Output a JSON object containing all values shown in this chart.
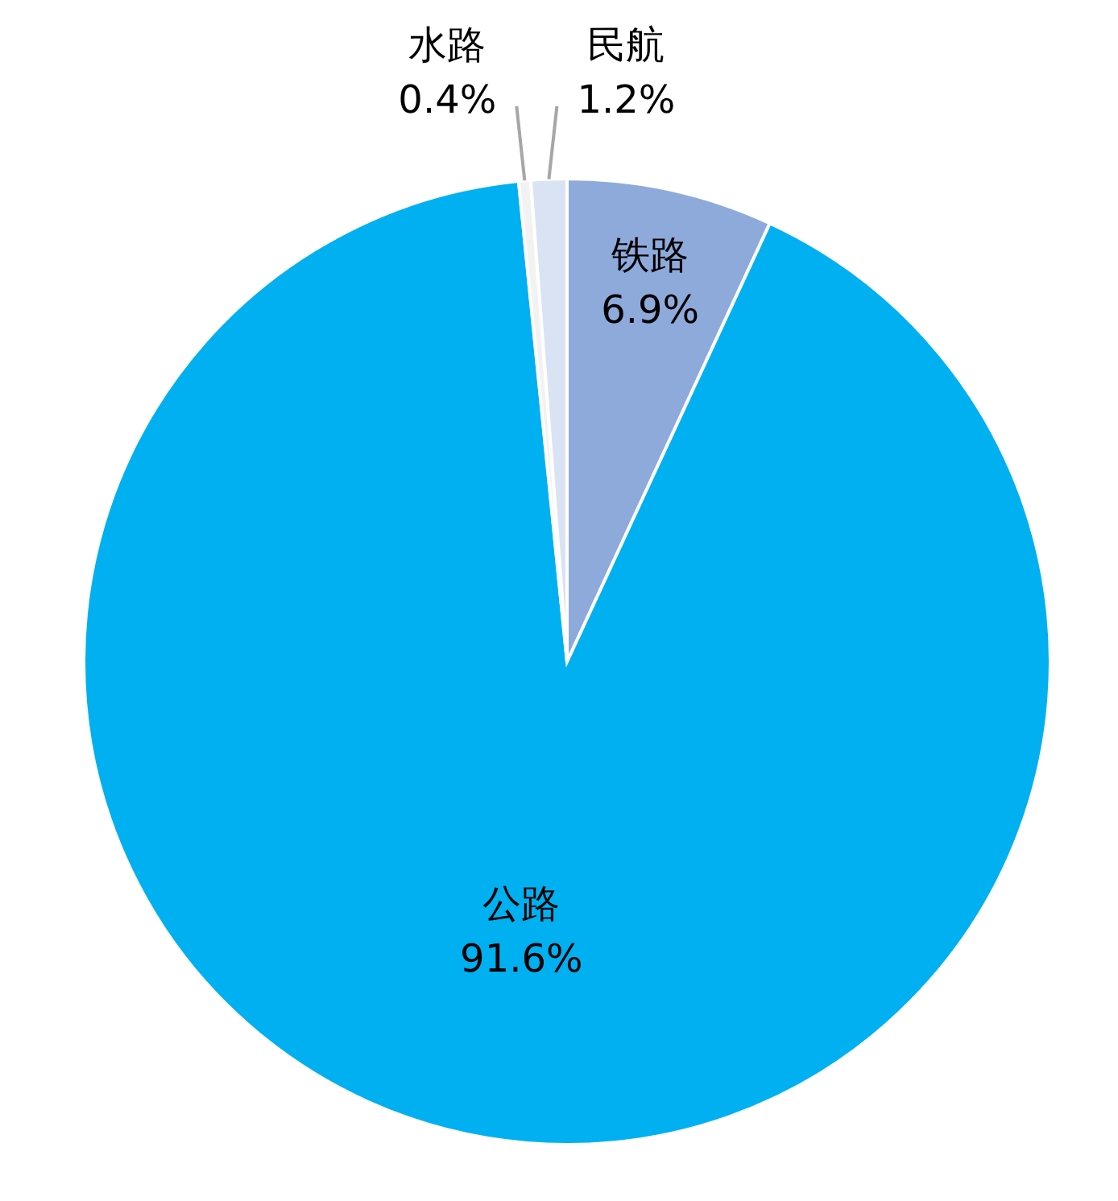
{
  "chart_data": {
    "type": "pie",
    "categories": [
      "铁路",
      "公路",
      "水路",
      "民航"
    ],
    "values": [
      6.9,
      91.6,
      0.4,
      1.2
    ],
    "value_labels": [
      "6.9%",
      "91.6%",
      "0.4%",
      "1.2%"
    ],
    "colors": [
      "#8eaadb",
      "#00b0f0",
      "#f2f2f2",
      "#dae3f3"
    ]
  }
}
